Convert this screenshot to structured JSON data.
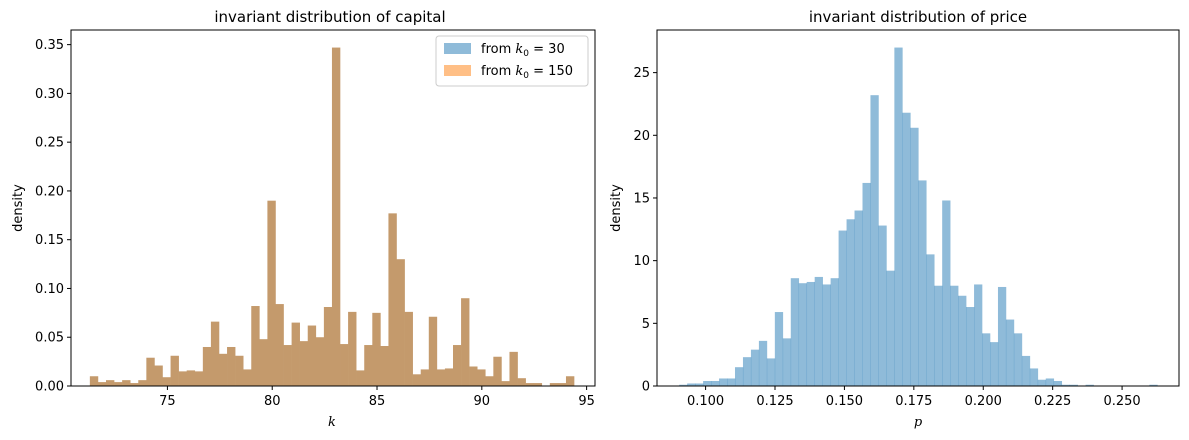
{
  "chart_data": [
    {
      "type": "bar",
      "title": "invariant distribution of capital",
      "xlabel": "k",
      "ylabel": "density",
      "xlim": [
        70.4,
        95.4
      ],
      "ylim": [
        0,
        0.365
      ],
      "xticks": [
        75,
        80,
        85,
        90,
        95
      ],
      "xtick_labels": [
        "75",
        "80",
        "85",
        "90",
        "95"
      ],
      "yticks": [
        0,
        0.05,
        0.1,
        0.15,
        0.2,
        0.25,
        0.3,
        0.35
      ],
      "ytick_labels": [
        "0.00",
        "0.05",
        "0.10",
        "0.15",
        "0.20",
        "0.25",
        "0.30",
        "0.35"
      ],
      "bin_start": 71.3,
      "bin_width": 0.385,
      "legend": {
        "placement": "top-right",
        "entries": [
          {
            "prefix": "from ",
            "var": "k",
            "sub": "0",
            "suffix": " = 30",
            "color": "#1f77b4"
          },
          {
            "prefix": "from ",
            "var": "k",
            "sub": "0",
            "suffix": " = 150",
            "color": "#ff7f0e"
          }
        ]
      },
      "overlap_color": "#c49a6c",
      "series": [
        {
          "name": "from k0 = 30",
          "color": "#1f77b4",
          "alpha": 0.5
        },
        {
          "name": "from k0 = 150",
          "color": "#ff7f0e",
          "alpha": 0.5
        }
      ],
      "values": [
        0.01,
        0.004,
        0.006,
        0.004,
        0.006,
        0.003,
        0.006,
        0.029,
        0.021,
        0.009,
        0.031,
        0.015,
        0.016,
        0.015,
        0.04,
        0.066,
        0.033,
        0.04,
        0.031,
        0.017,
        0.082,
        0.048,
        0.19,
        0.084,
        0.042,
        0.065,
        0.046,
        0.062,
        0.05,
        0.081,
        0.347,
        0.043,
        0.076,
        0.016,
        0.042,
        0.075,
        0.041,
        0.177,
        0.13,
        0.076,
        0.012,
        0.017,
        0.071,
        0.017,
        0.018,
        0.042,
        0.09,
        0.02,
        0.017,
        0.01,
        0.03,
        0.005,
        0.035,
        0.008,
        0.003,
        0.003,
        0.0,
        0.003,
        0.003,
        0.01
      ]
    },
    {
      "type": "bar",
      "title": "invariant distribution of price",
      "xlabel": "p",
      "ylabel": "density",
      "xlim": [
        0.0825,
        0.2705
      ],
      "ylim": [
        0,
        28.4
      ],
      "xticks": [
        0.1,
        0.125,
        0.15,
        0.175,
        0.2,
        0.225,
        0.25
      ],
      "xtick_labels": [
        "0.100",
        "0.125",
        "0.150",
        "0.175",
        "0.200",
        "0.225",
        "0.250"
      ],
      "yticks": [
        0,
        5,
        10,
        15,
        20,
        25
      ],
      "ytick_labels": [
        "0",
        "5",
        "10",
        "15",
        "20",
        "25"
      ],
      "bin_start": 0.0905,
      "bin_width": 0.00287,
      "color": "#1f77b4",
      "alpha": 0.5,
      "values": [
        0.1,
        0.2,
        0.2,
        0.4,
        0.4,
        0.6,
        0.6,
        1.5,
        2.3,
        2.9,
        3.6,
        2.2,
        5.9,
        3.8,
        8.6,
        8.2,
        8.3,
        8.7,
        8.1,
        8.6,
        12.4,
        13.3,
        14.0,
        16.2,
        23.2,
        12.8,
        9.2,
        27.0,
        21.8,
        20.6,
        16.4,
        10.5,
        8.0,
        14.8,
        8.0,
        7.2,
        6.3,
        8.1,
        4.2,
        3.5,
        7.9,
        5.3,
        4.2,
        2.4,
        1.4,
        0.5,
        0.6,
        0.4,
        0.1,
        0.1,
        0.0,
        0.1,
        0.0,
        0.0,
        0.0,
        0.0,
        0.0,
        0.0,
        0.0,
        0.1
      ]
    }
  ]
}
